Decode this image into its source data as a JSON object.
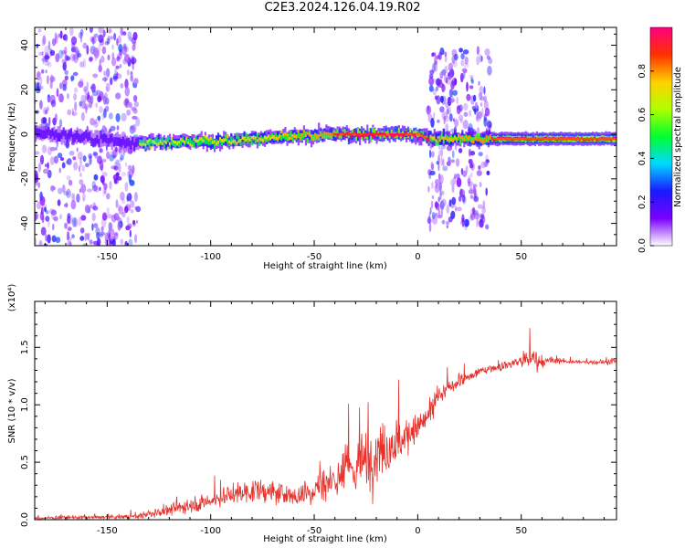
{
  "title": "C2E3.2024.126.04.19.R02",
  "colors": {
    "line": "#e8302a",
    "axis": "#000000",
    "background": "#ffffff"
  },
  "chart_data": [
    {
      "type": "heatmap",
      "xlabel": "Height of straight line (km)",
      "ylabel": "Frequency (Hz)",
      "xlim": [
        -185,
        96
      ],
      "ylim": [
        -50,
        48
      ],
      "x_ticks": [
        -150,
        -100,
        -50,
        0,
        50
      ],
      "y_ticks": [
        -40,
        -20,
        0,
        20,
        40
      ],
      "colorbar": {
        "label": "Normalized spectral amplitude",
        "range": [
          0.0,
          1.0
        ],
        "ticks": [
          0.0,
          0.2,
          0.4,
          0.6,
          0.8
        ],
        "colormap": [
          "#ffffff",
          "#7a00ff",
          "#1a1aff",
          "#00d8ff",
          "#00ff30",
          "#b0ff00",
          "#ffd000",
          "#ff3000",
          "#ff0080"
        ]
      },
      "ridge": {
        "x": [
          -185,
          -135,
          -100,
          -60,
          -40,
          -20,
          0,
          5,
          35,
          96
        ],
        "y": [
          1,
          -4,
          -3,
          -1,
          0,
          0,
          0,
          -2,
          -2,
          -2
        ]
      },
      "noisy_regions": [
        {
          "x": [
            -185,
            -135
          ],
          "y": [
            -50,
            48
          ]
        },
        {
          "x": [
            5,
            35
          ],
          "y": [
            -42,
            38
          ]
        }
      ]
    },
    {
      "type": "line",
      "xlabel": "Height of straight line (km)",
      "ylabel": "SNR (10 * v/v)",
      "y_multiplier_label": "(x10⁴)",
      "xlim": [
        -185,
        96
      ],
      "ylim": [
        0,
        19000
      ],
      "x_ticks": [
        -150,
        -100,
        -50,
        0,
        50
      ],
      "y_ticks": [
        0,
        5000,
        10000,
        15000
      ],
      "y_tick_labels": [
        "0.0",
        "0.5",
        "1.0",
        "1.5"
      ],
      "series": [
        {
          "x": [
            -185,
            -170,
            -150,
            -135,
            -125,
            -110,
            -100,
            -90,
            -80,
            -70,
            -60,
            -50,
            -40,
            -35,
            -30,
            -25,
            -20,
            -15,
            -10,
            -5,
            0,
            5,
            10,
            15,
            20,
            25,
            30,
            35,
            40,
            45,
            50,
            55,
            60,
            65,
            70,
            80,
            90,
            96
          ],
          "y": [
            100,
            200,
            200,
            300,
            600,
            1300,
            1600,
            2200,
            2500,
            2400,
            2000,
            2600,
            3600,
            4200,
            4600,
            5000,
            5800,
            6400,
            6600,
            7400,
            8000,
            9000,
            10500,
            11500,
            12000,
            12400,
            12900,
            13200,
            13300,
            13600,
            13800,
            14000,
            13700,
            13800,
            13800,
            13700,
            13700,
            13800
          ],
          "spread": [
            150,
            200,
            200,
            300,
            500,
            900,
            1000,
            1200,
            1300,
            1200,
            1300,
            1600,
            2400,
            3000,
            3400,
            3600,
            3200,
            3000,
            2800,
            2200,
            1800,
            1400,
            1000,
            900,
            700,
            600,
            500,
            500,
            500,
            600,
            900,
            1600,
            700,
            300,
            250,
            250,
            250,
            300
          ]
        }
      ]
    }
  ]
}
